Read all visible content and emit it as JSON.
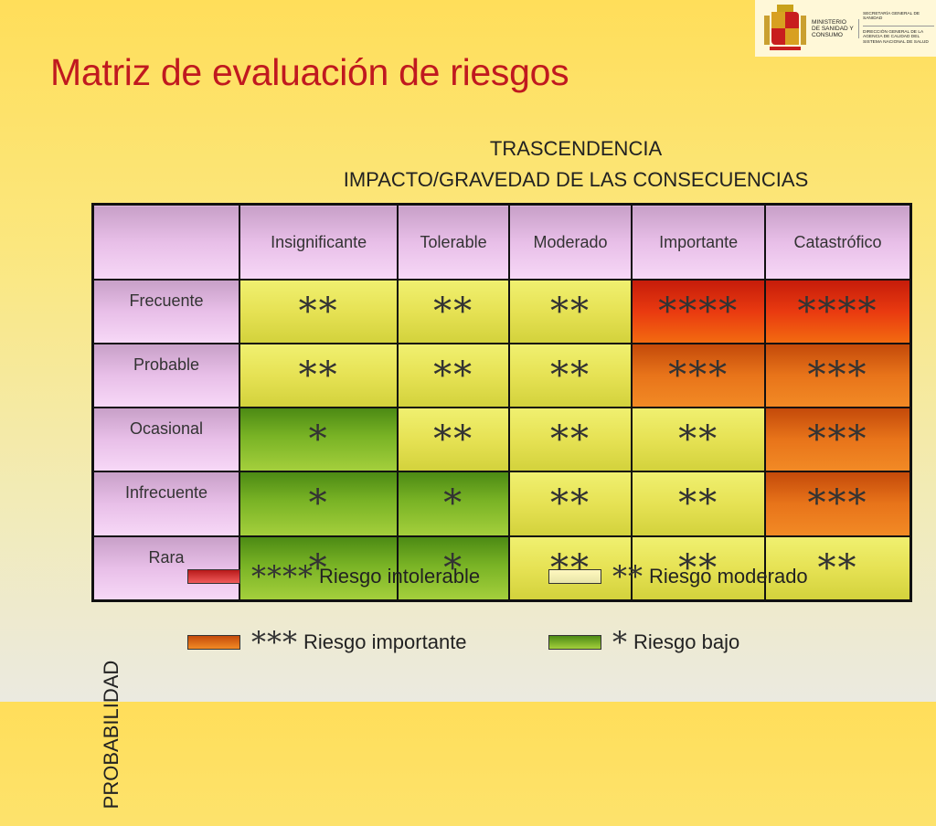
{
  "logo": {
    "ministry": "MINISTERIO DE SANIDAD Y CONSUMO",
    "line1": "SECRETARÍA GENERAL DE SANIDAD",
    "line2": "DIRECCIÓN GENERAL DE LA AGENCIA DE CALIDAD DEL SISTEMA NACIONAL DE SALUD"
  },
  "title": "Matriz de evaluación de riesgos",
  "header": {
    "line1": "TRASCENDENCIA",
    "line2": "IMPACTO/GRAVEDAD DE LAS CONSECUENCIAS"
  },
  "row_axis_label": "PROBABILIDAD",
  "matrix": {
    "columns": [
      "Insignificante",
      "Tolerable",
      "Moderado",
      "Importante",
      "Catastrófico"
    ],
    "rows": [
      {
        "label": "Frecuente",
        "cells": [
          "**",
          "**",
          "**",
          "****",
          "****"
        ]
      },
      {
        "label": "Probable",
        "cells": [
          "**",
          "**",
          "**",
          "***",
          "***"
        ]
      },
      {
        "label": "Ocasional",
        "cells": [
          "*",
          "**",
          "**",
          "**",
          "***"
        ]
      },
      {
        "label": "Infrecuente",
        "cells": [
          "*",
          "*",
          "**",
          "**",
          "***"
        ]
      },
      {
        "label": "Rara",
        "cells": [
          "*",
          "*",
          "**",
          "**",
          "**"
        ]
      }
    ]
  },
  "legend": [
    {
      "stars": "****",
      "label": "Riesgo intolerable",
      "color": "#e03030"
    },
    {
      "stars": "**",
      "label": "Riesgo moderado",
      "color": "#f4f0c0"
    },
    {
      "stars": "***",
      "label": "Riesgo importante",
      "color": "#e8741a"
    },
    {
      "stars": "*",
      "label": "Riesgo bajo",
      "color": "#79b325"
    }
  ]
}
